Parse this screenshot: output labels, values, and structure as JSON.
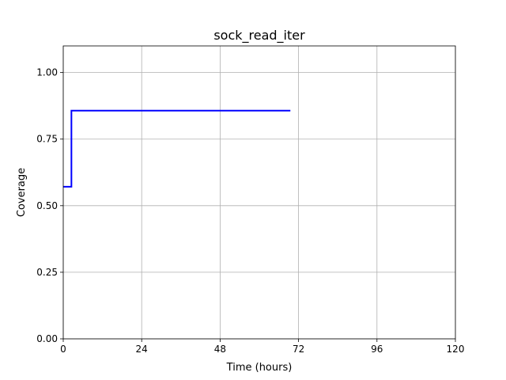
{
  "chart_data": {
    "type": "line",
    "title": "sock_read_iter",
    "xlabel": "Time (hours)",
    "ylabel": "Coverage",
    "xlim": [
      0,
      120
    ],
    "ylim": [
      0,
      1.1
    ],
    "xticks": [
      0,
      24,
      48,
      72,
      96,
      120
    ],
    "xtick_labels": [
      "0",
      "24",
      "48",
      "72",
      "96",
      "120"
    ],
    "yticks": [
      0,
      0.25,
      0.5,
      0.75,
      1.0
    ],
    "ytick_labels": [
      "0.00",
      "0.25",
      "0.50",
      "0.75",
      "1.00"
    ],
    "grid": true,
    "series": [
      {
        "color": "#0000ff",
        "step": "post",
        "x": [
          0,
          2.5,
          69.5
        ],
        "y": [
          0.571,
          0.857,
          0.857
        ]
      }
    ]
  }
}
